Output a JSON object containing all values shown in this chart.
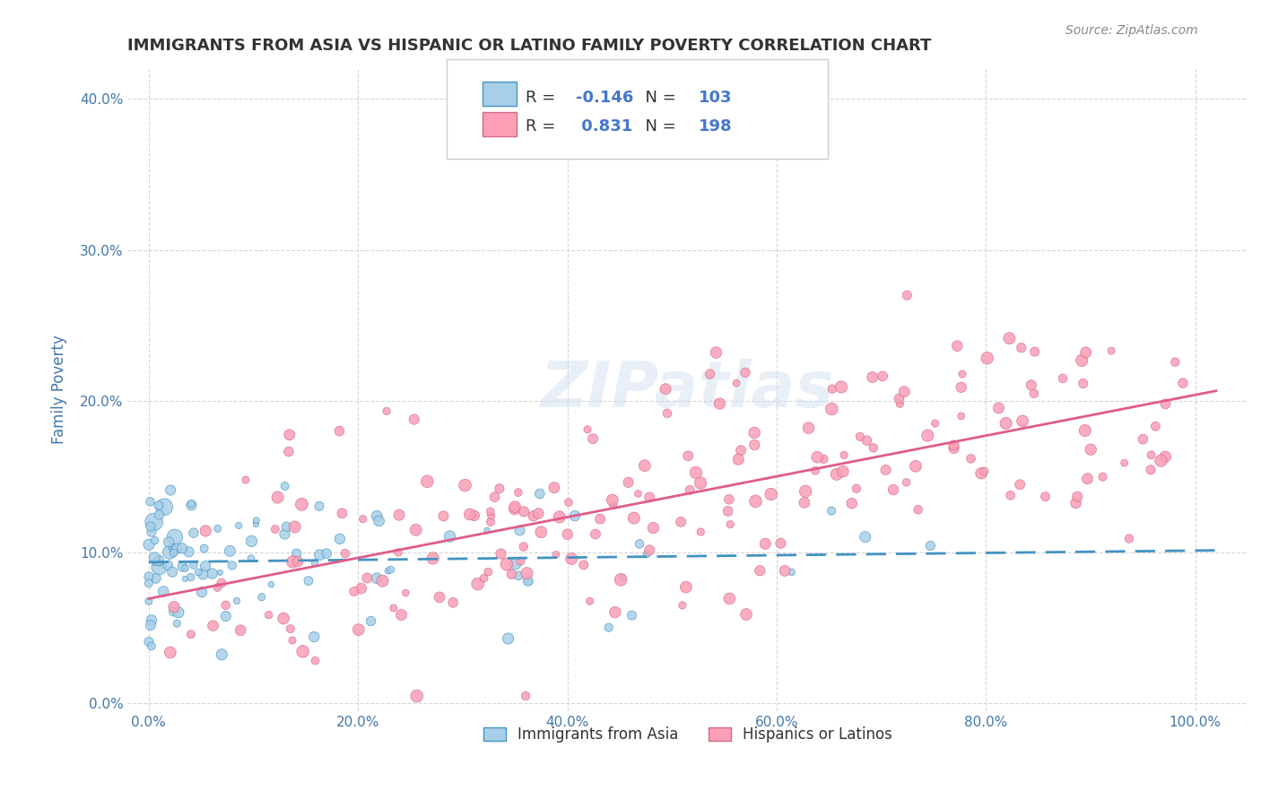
{
  "title": "IMMIGRANTS FROM ASIA VS HISPANIC OR LATINO FAMILY POVERTY CORRELATION CHART",
  "source_text": "Source: ZipAtlas.com",
  "xlabel": "",
  "ylabel": "Family Poverty",
  "watermark": "ZIPatlas",
  "x_ticks": [
    0.0,
    0.2,
    0.4,
    0.6,
    0.8,
    1.0
  ],
  "x_tick_labels": [
    "0.0%",
    "20.0%",
    "40.0%",
    "60.0%",
    "80.0%",
    "100.0%"
  ],
  "y_ticks": [
    0.0,
    0.1,
    0.2,
    0.3,
    0.4
  ],
  "y_tick_labels": [
    "0.0%",
    "10.0%",
    "20.0%",
    "30.0%",
    "40.0%"
  ],
  "xlim": [
    -0.02,
    1.05
  ],
  "ylim": [
    -0.005,
    0.42
  ],
  "blue_color": "#6baed6",
  "blue_marker_color": "#a8cfe8",
  "blue_line_color": "#4393c3",
  "pink_color": "#fa9fb5",
  "pink_line_color": "#e05c8a",
  "legend_r1": "R = -0.146",
  "legend_n1": "N = 103",
  "legend_r2": "R =  0.831",
  "legend_n2": "N = 198",
  "legend_label1": "Immigrants from Asia",
  "legend_label2": "Hispanics or Latinos",
  "blue_R": -0.146,
  "pink_R": 0.831,
  "blue_N": 103,
  "pink_N": 198,
  "seed": 42,
  "background_color": "#ffffff",
  "grid_color": "#cccccc",
  "title_color": "#333333",
  "axis_label_color": "#4477aa",
  "tick_color": "#4477aa"
}
